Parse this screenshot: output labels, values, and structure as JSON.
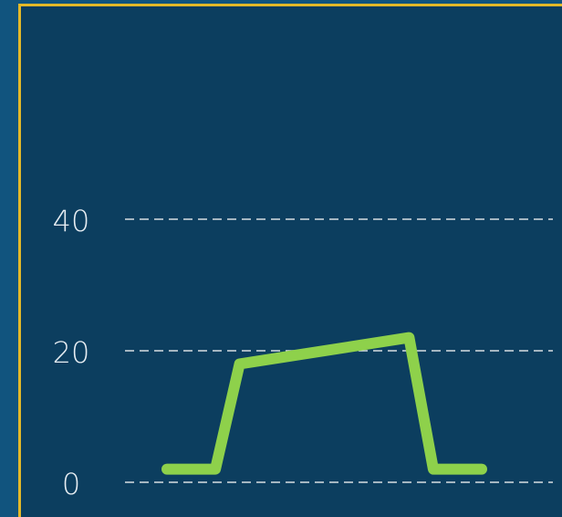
{
  "chart_data": {
    "type": "line",
    "x": [
      0,
      2,
      3,
      10,
      11,
      13
    ],
    "series": [
      {
        "color": "#8ed14b",
        "values": [
          2,
          2,
          18,
          22,
          2,
          2
        ]
      }
    ],
    "xlim": [
      0,
      13
    ],
    "ylim": [
      0,
      40
    ],
    "yticks": [
      0,
      20,
      40
    ],
    "grid": true
  }
}
